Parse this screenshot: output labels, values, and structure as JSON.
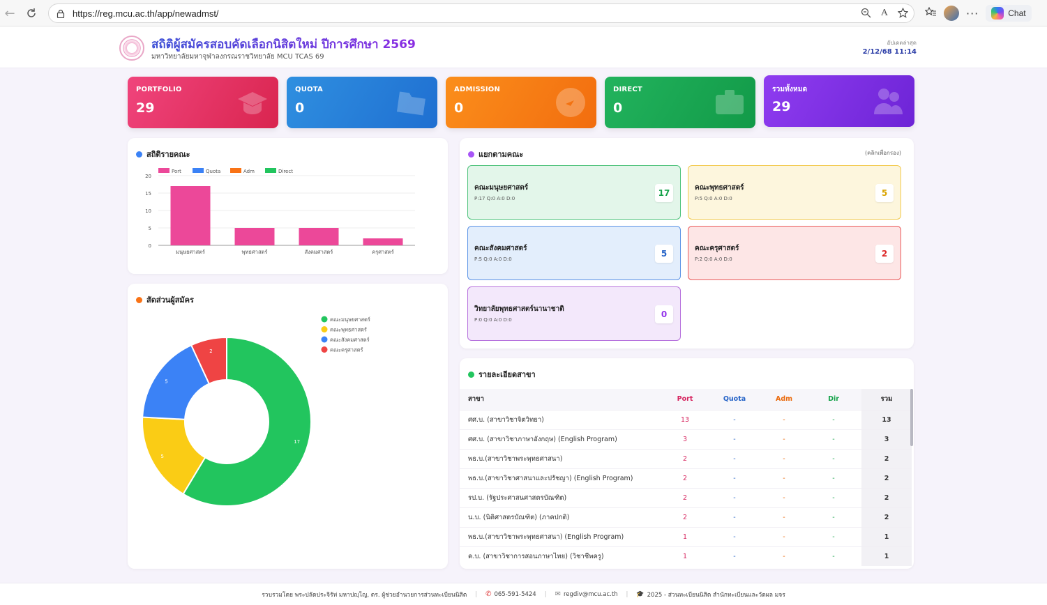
{
  "browser": {
    "url": "https://reg.mcu.ac.th/app/newadmst/",
    "chat_label": "Chat"
  },
  "header": {
    "title": "สถิติผู้สมัครสอบคัดเลือกนิสิตใหม่ ปีการศึกษา 2569",
    "subtitle": "มหาวิทยาลัยมหาจุฬาลงกรณราชวิทยาลัย MCU TCAS 69",
    "update_label": "อัปเดตล่าสุด",
    "update_time": "2/12/68 11:14"
  },
  "stats": [
    {
      "label": "PORTFOLIO",
      "value": "29",
      "icon": "graduation-cap-icon"
    },
    {
      "label": "QUOTA",
      "value": "0",
      "icon": "folder-icon"
    },
    {
      "label": "ADMISSION",
      "value": "0",
      "icon": "target-icon"
    },
    {
      "label": "DIRECT",
      "value": "0",
      "icon": "briefcase-icon"
    },
    {
      "label": "รวมทั้งหมด",
      "value": "29",
      "icon": "users-icon"
    }
  ],
  "bar_panel": {
    "title": "สถิติรายคณะ",
    "dot_color": "#3b82f6"
  },
  "donut_panel": {
    "title": "สัดส่วนผู้สมัคร",
    "dot_color": "#f97316"
  },
  "chart_data": [
    {
      "type": "bar",
      "categories": [
        "มนุษยศาสตร์",
        "พุทธศาสตร์",
        "สังคมศาสตร์",
        "ครุศาสตร์"
      ],
      "series": [
        {
          "name": "Port",
          "values": [
            17,
            5,
            5,
            2
          ],
          "color": "#ec4899"
        },
        {
          "name": "Quota",
          "values": [
            0,
            0,
            0,
            0
          ],
          "color": "#3b82f6"
        },
        {
          "name": "Adm",
          "values": [
            0,
            0,
            0,
            0
          ],
          "color": "#f97316"
        },
        {
          "name": "Direct",
          "values": [
            0,
            0,
            0,
            0
          ],
          "color": "#22c55e"
        }
      ],
      "ylim": [
        0,
        20
      ],
      "yticks": [
        0,
        5,
        10,
        15,
        20
      ],
      "grid": true,
      "legend": "top-left"
    },
    {
      "type": "pie",
      "donut": true,
      "labels": [
        "คณะมนุษยศาสตร์",
        "คณะพุทธศาสตร์",
        "คณะสังคมศาสตร์",
        "คณะครุศาสตร์"
      ],
      "values": [
        17,
        5,
        5,
        2
      ],
      "colors": [
        "#22c55e",
        "#facc15",
        "#3b82f6",
        "#ef4444"
      ],
      "legend": "top-right"
    }
  ],
  "faculty_panel": {
    "title": "แยกตามคณะ",
    "hint": "(คลิกเพื่อกรอง)",
    "dot_color": "#a855f7",
    "cards": [
      {
        "name": "คณะมนุษยศาสตร์",
        "sub": "P:17   Q:0   A:0   D:0",
        "count": "17",
        "bg": "#e3f6ea",
        "border": "#4cc27a",
        "count_color": "#16a34a"
      },
      {
        "name": "คณะพุทธศาสตร์",
        "sub": "P:5   Q:0   A:0   D:0",
        "count": "5",
        "bg": "#fdf6dd",
        "border": "#f2c94c",
        "count_color": "#d9a400"
      },
      {
        "name": "คณะสังคมศาสตร์",
        "sub": "P:5   Q:0   A:0   D:0",
        "count": "5",
        "bg": "#e3eefc",
        "border": "#5b93e6",
        "count_color": "#2563c7"
      },
      {
        "name": "คณะครุศาสตร์",
        "sub": "P:2   Q:0   A:0   D:0",
        "count": "2",
        "bg": "#fde6e6",
        "border": "#ea5a5a",
        "count_color": "#dc2626"
      },
      {
        "name": "วิทยาลัยพุทธศาสตร์นานาชาติ",
        "sub": "P:0   Q:0   A:0   D:0",
        "count": "0",
        "bg": "#f3e8fb",
        "border": "#b56fdc",
        "count_color": "#9333ea"
      }
    ]
  },
  "table_panel": {
    "title": "รายละเอียดสาขา",
    "dot_color": "#22c55e",
    "headers": [
      "สาขา",
      "Port",
      "Quota",
      "Adm",
      "Dir",
      "รวม"
    ],
    "rows": [
      [
        "ศศ.บ. (สาขาวิชาจิตวิทยา)",
        "13",
        "-",
        "-",
        "-",
        "13"
      ],
      [
        "ศศ.บ. (สาขาวิชาภาษาอังกฤษ) (English Program)",
        "3",
        "-",
        "-",
        "-",
        "3"
      ],
      [
        "พธ.บ.(สาขาวิชาพระพุทธศาสนา)",
        "2",
        "-",
        "-",
        "-",
        "2"
      ],
      [
        "พธ.บ.(สาขาวิชาศาสนาและปรัชญา) (English Program)",
        "2",
        "-",
        "-",
        "-",
        "2"
      ],
      [
        "รป.บ. (รัฐประศาสนศาสตรบัณฑิต)",
        "2",
        "-",
        "-",
        "-",
        "2"
      ],
      [
        "น.บ. (นิติศาสตรบัณฑิต) (ภาคปกติ)",
        "2",
        "-",
        "-",
        "-",
        "2"
      ],
      [
        "พธ.บ.(สาขาวิชาพระพุทธศาสนา) (English Program)",
        "1",
        "-",
        "-",
        "-",
        "1"
      ],
      [
        "ค.บ. (สาขาวิชาการสอนภาษาไทย) (วิชาชีพครู)",
        "1",
        "-",
        "-",
        "-",
        "1"
      ]
    ]
  },
  "footer": {
    "credit": "รวบรวมโดย พระปลัดประจิรัท่ มหาปญฺโญ, ดร. ผู้ช่วยอำนวยการส่วนทะเบียนนิสิต",
    "phone": "065-591-5424",
    "email": "regdiv@mcu.ac.th",
    "copyright": "2025 - ส่วนทะเบียนนิสิต สำนักทะเบียนและวัดผล มจร"
  }
}
